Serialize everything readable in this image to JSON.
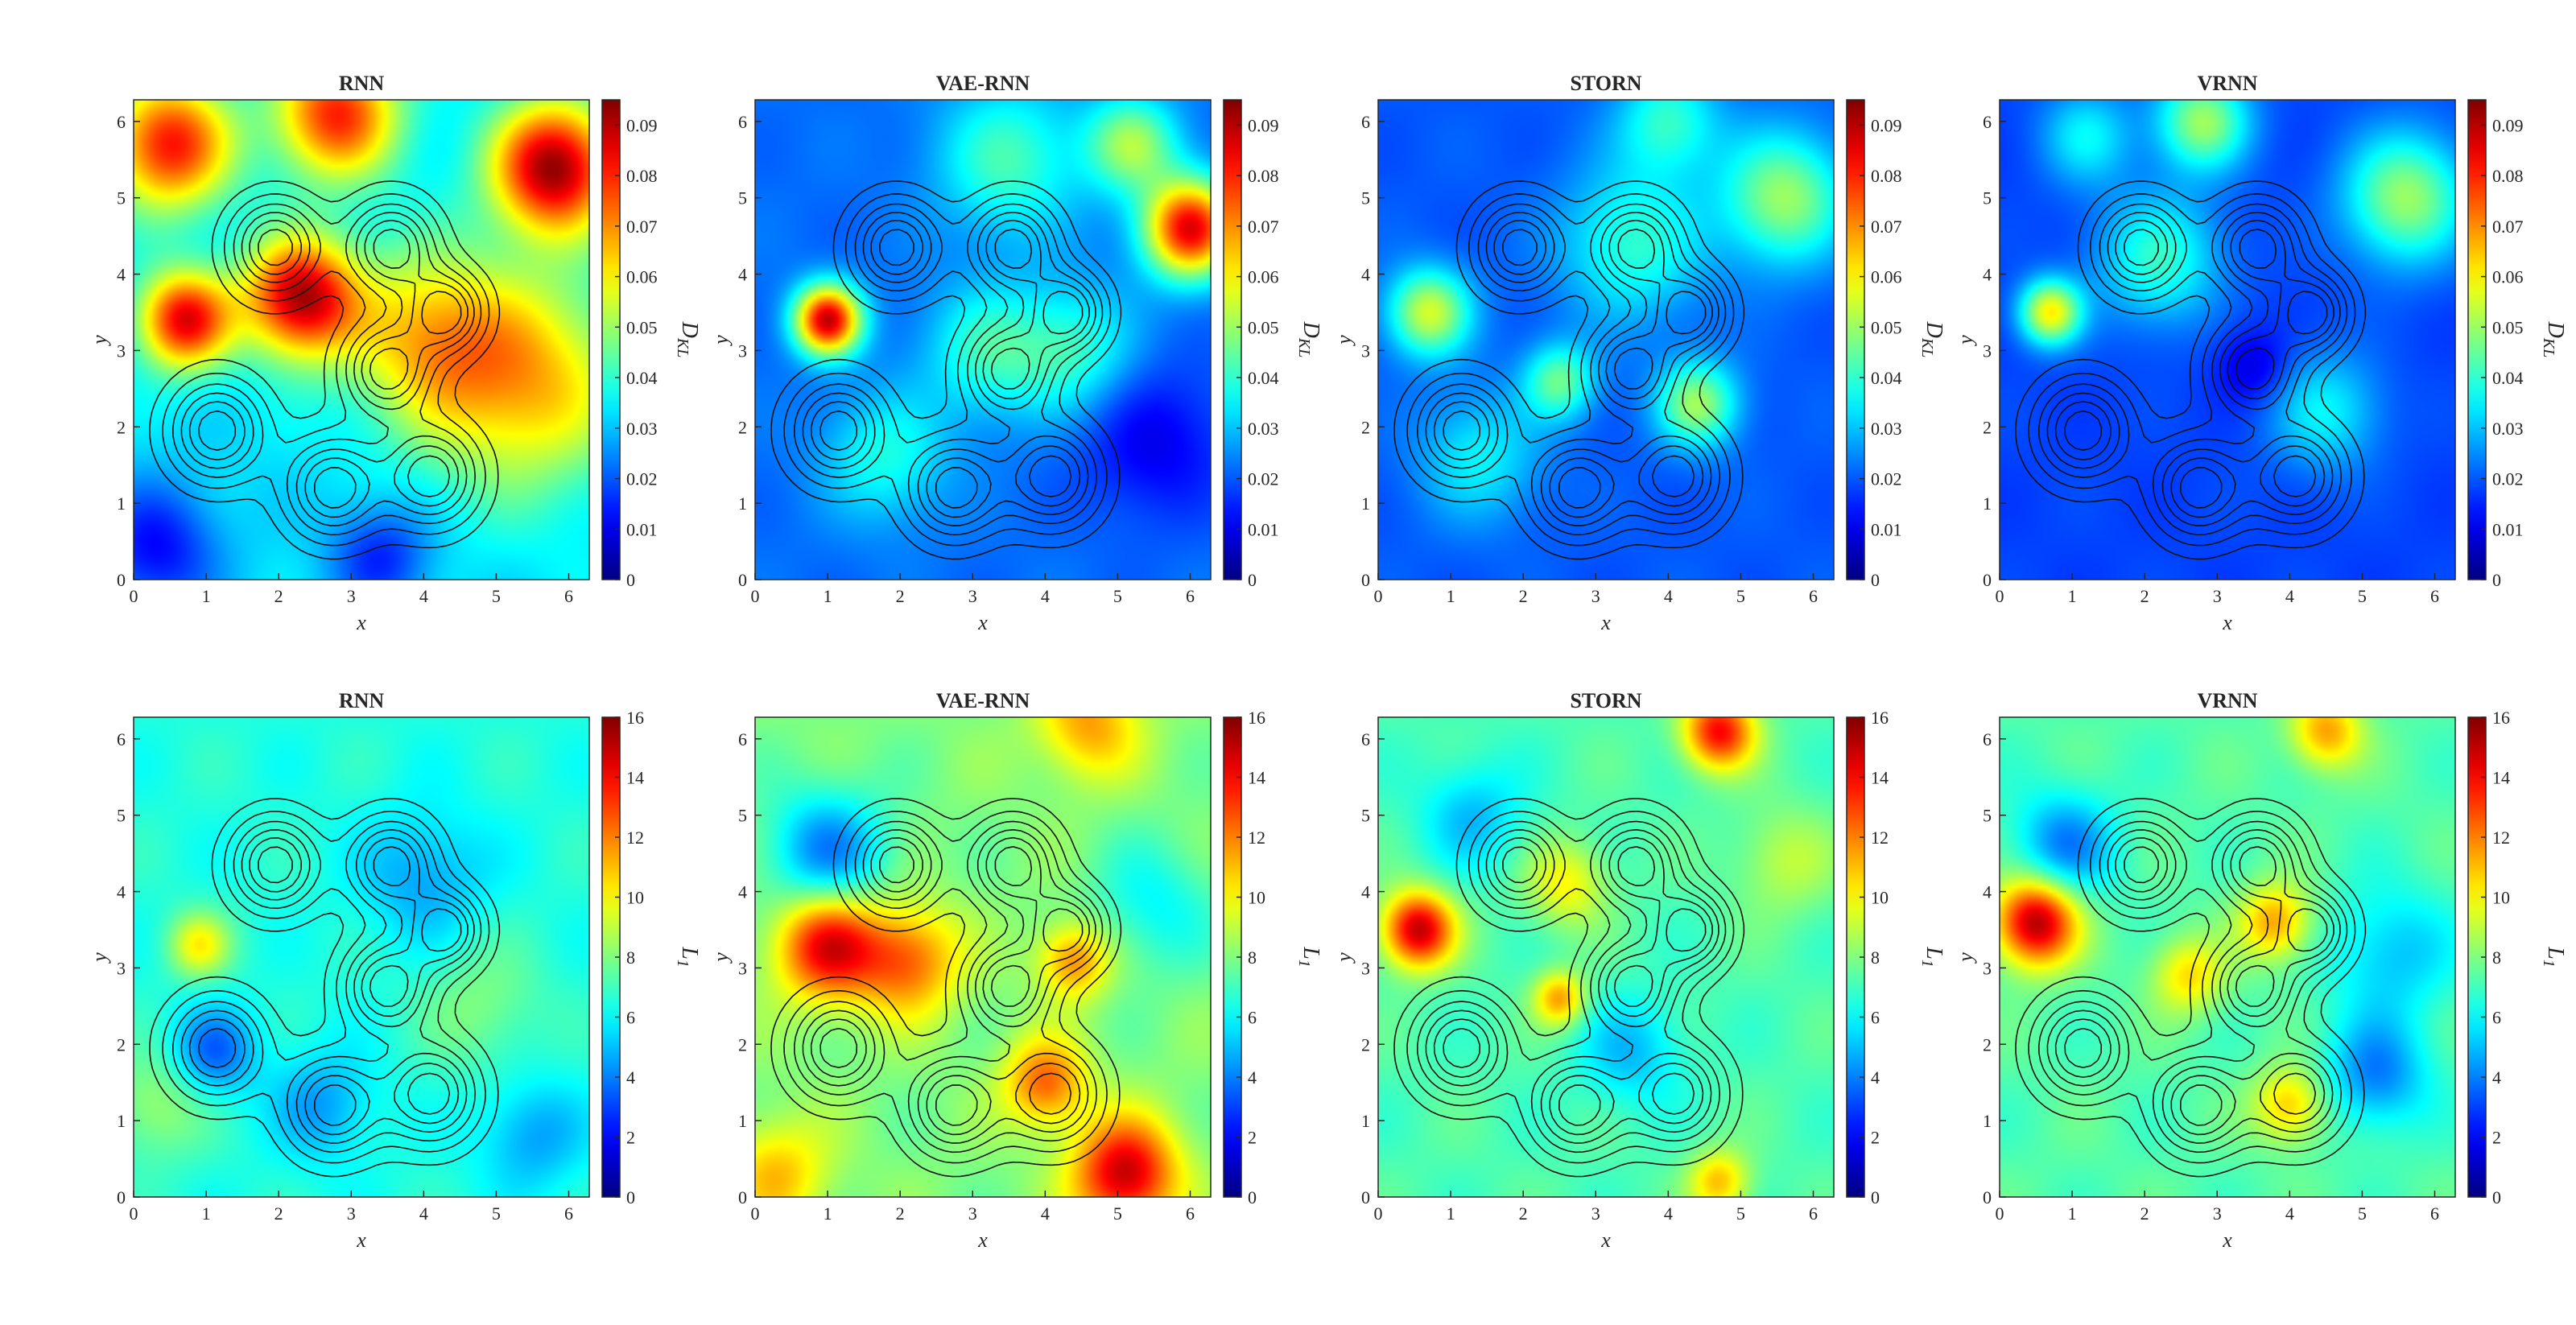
{
  "chart_data": {
    "type": "heatmap",
    "grid_rows": 2,
    "grid_cols": 4,
    "xlabel": "x",
    "ylabel": "y",
    "xlim": [
      0,
      6.283
    ],
    "ylim": [
      0,
      6.283
    ],
    "xticks": [
      0,
      1,
      2,
      3,
      4,
      5,
      6
    ],
    "yticks": [
      0,
      1,
      2,
      3,
      4,
      5,
      6
    ],
    "colormap": "jet",
    "contour_color": "#111111",
    "contour_peaks": [
      {
        "x": 1.95,
        "y": 4.35,
        "s": 0.42
      },
      {
        "x": 3.55,
        "y": 4.35,
        "s": 0.42
      },
      {
        "x": 4.3,
        "y": 3.5,
        "s": 0.36
      },
      {
        "x": 3.5,
        "y": 2.75,
        "s": 0.42
      },
      {
        "x": 1.15,
        "y": 1.95,
        "s": 0.45
      },
      {
        "x": 2.75,
        "y": 1.2,
        "s": 0.45
      },
      {
        "x": 4.1,
        "y": 1.35,
        "s": 0.45
      }
    ],
    "contour_levels": [
      0.12,
      0.25,
      0.4,
      0.55,
      0.7,
      0.85
    ],
    "rows": [
      {
        "colorbar_label": "D_KL",
        "colorbar_range": [
          0,
          0.095
        ],
        "colorbar_ticks": [
          "0",
          "0.01",
          "0.02",
          "0.03",
          "0.04",
          "0.05",
          "0.06",
          "0.07",
          "0.08",
          "0.09"
        ],
        "panels": [
          {
            "title": "RNN",
            "base_value": 0.033,
            "hotspots": [
              {
                "x": 0.5,
                "y": 5.7,
                "v": 0.082,
                "s": 0.6
              },
              {
                "x": 2.8,
                "y": 6.1,
                "v": 0.08,
                "s": 0.6
              },
              {
                "x": 5.8,
                "y": 5.4,
                "v": 0.093,
                "s": 0.6
              },
              {
                "x": 0.7,
                "y": 3.4,
                "v": 0.085,
                "s": 0.45
              },
              {
                "x": 2.3,
                "y": 3.7,
                "v": 0.09,
                "s": 0.55
              },
              {
                "x": 5.4,
                "y": 2.6,
                "v": 0.066,
                "s": 1.0
              },
              {
                "x": 4.0,
                "y": 3.2,
                "v": 0.06,
                "s": 0.8
              },
              {
                "x": 3.4,
                "y": 0.3,
                "v": 0.015,
                "s": 0.5
              },
              {
                "x": 0.3,
                "y": 0.4,
                "v": 0.012,
                "s": 0.6
              }
            ]
          },
          {
            "title": "VAE-RNN",
            "base_value": 0.022,
            "hotspots": [
              {
                "x": 1.0,
                "y": 3.4,
                "v": 0.088,
                "s": 0.32
              },
              {
                "x": 6.0,
                "y": 4.6,
                "v": 0.085,
                "s": 0.45
              },
              {
                "x": 5.2,
                "y": 5.7,
                "v": 0.05,
                "s": 0.45
              },
              {
                "x": 3.5,
                "y": 5.5,
                "v": 0.042,
                "s": 0.7
              },
              {
                "x": 3.2,
                "y": 3.0,
                "v": 0.04,
                "s": 0.6
              },
              {
                "x": 4.4,
                "y": 3.0,
                "v": 0.04,
                "s": 0.6
              },
              {
                "x": 1.8,
                "y": 1.6,
                "v": 0.038,
                "s": 0.6
              },
              {
                "x": 5.5,
                "y": 1.8,
                "v": 0.01,
                "s": 0.7
              }
            ]
          },
          {
            "title": "STORN",
            "base_value": 0.02,
            "hotspots": [
              {
                "x": 5.6,
                "y": 5.0,
                "v": 0.05,
                "s": 0.6
              },
              {
                "x": 0.7,
                "y": 3.5,
                "v": 0.055,
                "s": 0.4
              },
              {
                "x": 4.4,
                "y": 2.3,
                "v": 0.05,
                "s": 0.4
              },
              {
                "x": 2.5,
                "y": 2.6,
                "v": 0.045,
                "s": 0.35
              },
              {
                "x": 3.5,
                "y": 4.4,
                "v": 0.04,
                "s": 0.7
              },
              {
                "x": 4.0,
                "y": 6.0,
                "v": 0.04,
                "s": 0.5
              },
              {
                "x": 1.4,
                "y": 1.6,
                "v": 0.035,
                "s": 0.6
              }
            ]
          },
          {
            "title": "VRNN",
            "base_value": 0.018,
            "hotspots": [
              {
                "x": 0.7,
                "y": 3.5,
                "v": 0.06,
                "s": 0.3
              },
              {
                "x": 2.8,
                "y": 6.0,
                "v": 0.05,
                "s": 0.45
              },
              {
                "x": 5.6,
                "y": 5.0,
                "v": 0.05,
                "s": 0.6
              },
              {
                "x": 3.5,
                "y": 2.8,
                "v": 0.008,
                "s": 0.35
              },
              {
                "x": 2.2,
                "y": 4.2,
                "v": 0.04,
                "s": 0.6
              },
              {
                "x": 4.5,
                "y": 2.2,
                "v": 0.035,
                "s": 0.55
              },
              {
                "x": 1.2,
                "y": 5.8,
                "v": 0.035,
                "s": 0.45
              }
            ]
          }
        ]
      },
      {
        "colorbar_label": "L_1",
        "colorbar_range": [
          0,
          16
        ],
        "colorbar_ticks": [
          "0",
          "2",
          "4",
          "6",
          "8",
          "10",
          "12",
          "14",
          "16"
        ],
        "panels": [
          {
            "title": "RNN",
            "base_value": 6.5,
            "hotspots": [
              {
                "x": 0.9,
                "y": 3.3,
                "v": 10,
                "s": 0.3
              },
              {
                "x": 1.1,
                "y": 1.9,
                "v": 3.5,
                "s": 0.4
              },
              {
                "x": 2.6,
                "y": 1.2,
                "v": 4.5,
                "s": 0.5
              },
              {
                "x": 4.0,
                "y": 4.2,
                "v": 4.5,
                "s": 0.6
              },
              {
                "x": 0.3,
                "y": 1.2,
                "v": 8.5,
                "s": 0.5
              },
              {
                "x": 4.8,
                "y": 2.5,
                "v": 8.0,
                "s": 0.6
              },
              {
                "x": 5.5,
                "y": 0.8,
                "v": 4.5,
                "s": 0.5
              }
            ]
          },
          {
            "title": "VAE-RNN",
            "base_value": 8.0,
            "hotspots": [
              {
                "x": 1.0,
                "y": 3.3,
                "v": 14.5,
                "s": 0.5
              },
              {
                "x": 2.1,
                "y": 3.1,
                "v": 12.5,
                "s": 0.5
              },
              {
                "x": 5.1,
                "y": 0.3,
                "v": 15.0,
                "s": 0.5
              },
              {
                "x": 4.0,
                "y": 1.5,
                "v": 12.5,
                "s": 0.4
              },
              {
                "x": 4.4,
                "y": 3.1,
                "v": 12.0,
                "s": 0.35
              },
              {
                "x": 4.6,
                "y": 6.2,
                "v": 11.5,
                "s": 0.5
              },
              {
                "x": 1.0,
                "y": 4.5,
                "v": 4.0,
                "s": 0.6
              },
              {
                "x": 5.5,
                "y": 3.8,
                "v": 6.0,
                "s": 0.6
              },
              {
                "x": 0.3,
                "y": 0.3,
                "v": 11.0,
                "s": 0.5
              }
            ]
          },
          {
            "title": "STORN",
            "base_value": 7.2,
            "hotspots": [
              {
                "x": 0.55,
                "y": 3.5,
                "v": 15.0,
                "s": 0.35
              },
              {
                "x": 4.7,
                "y": 6.1,
                "v": 14.0,
                "s": 0.35
              },
              {
                "x": 2.5,
                "y": 2.6,
                "v": 11.5,
                "s": 0.25
              },
              {
                "x": 2.6,
                "y": 4.1,
                "v": 10.0,
                "s": 0.4
              },
              {
                "x": 1.3,
                "y": 5.0,
                "v": 5.0,
                "s": 0.5
              },
              {
                "x": 3.5,
                "y": 1.9,
                "v": 5.0,
                "s": 0.5
              },
              {
                "x": 4.7,
                "y": 0.2,
                "v": 11.0,
                "s": 0.3
              },
              {
                "x": 5.6,
                "y": 4.4,
                "v": 9.0,
                "s": 0.5
              }
            ]
          },
          {
            "title": "VRNN",
            "base_value": 7.3,
            "hotspots": [
              {
                "x": 0.5,
                "y": 3.6,
                "v": 15.5,
                "s": 0.4
              },
              {
                "x": 4.5,
                "y": 6.1,
                "v": 11.5,
                "s": 0.35
              },
              {
                "x": 3.8,
                "y": 3.6,
                "v": 11.5,
                "s": 0.35
              },
              {
                "x": 4.0,
                "y": 1.2,
                "v": 11.0,
                "s": 0.35
              },
              {
                "x": 2.6,
                "y": 2.9,
                "v": 10.5,
                "s": 0.35
              },
              {
                "x": 0.9,
                "y": 4.6,
                "v": 4.0,
                "s": 0.5
              },
              {
                "x": 5.4,
                "y": 3.2,
                "v": 5.0,
                "s": 0.6
              },
              {
                "x": 5.2,
                "y": 1.6,
                "v": 4.0,
                "s": 0.5
              }
            ]
          }
        ]
      }
    ]
  }
}
